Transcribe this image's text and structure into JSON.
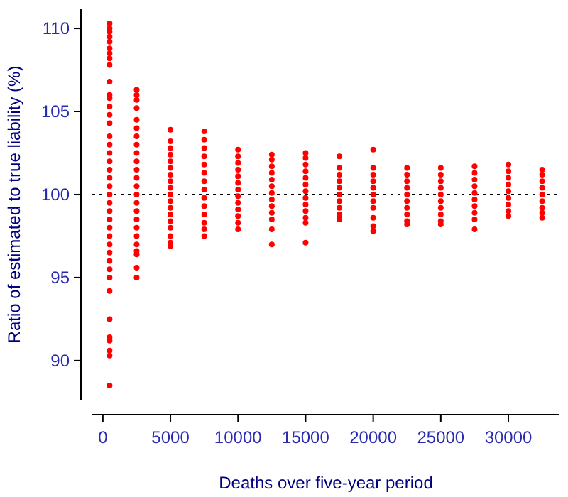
{
  "chart_data": {
    "type": "scatter",
    "xlabel": "Deaths over five-year period",
    "ylabel": "Ratio of estimated to true liability (%)",
    "xlim": [
      -780,
      33780
    ],
    "ylim": [
      87.6,
      111.2
    ],
    "xticks": [
      0,
      5000,
      10000,
      15000,
      20000,
      25000,
      30000
    ],
    "yticks": [
      90,
      95,
      100,
      105,
      110
    ],
    "marker": "circle",
    "grid": false,
    "ref_lines": [
      {
        "axis": "y",
        "value": 100,
        "color": "#000000",
        "line_style": "dotted"
      }
    ],
    "series": [
      {
        "color": "#ff0000",
        "x": [
          500,
          500,
          500,
          500,
          500,
          500,
          500,
          500,
          500,
          500,
          500,
          500,
          500,
          500,
          500,
          500,
          500,
          500,
          500,
          500,
          500,
          500,
          500,
          500,
          500,
          500,
          500,
          500,
          500,
          500,
          500,
          500,
          500,
          500,
          500,
          500,
          500,
          500,
          500,
          500
        ],
        "values": [
          110.3,
          110.0,
          109.8,
          109.5,
          109.2,
          108.8,
          108.5,
          108.2,
          107.8,
          106.8,
          106.0,
          105.8,
          105.3,
          104.8,
          104.3,
          103.5,
          103.0,
          102.5,
          102.0,
          101.5,
          101.0,
          100.5,
          100.0,
          99.5,
          99.0,
          98.5,
          98.0,
          97.5,
          97.0,
          96.5,
          96.0,
          95.5,
          95.0,
          94.2,
          92.5,
          91.4,
          91.2,
          90.6,
          90.3,
          88.5
        ]
      },
      {
        "color": "#ff0000",
        "x": [
          2500,
          2500,
          2500,
          2500,
          2500,
          2500,
          2500,
          2500,
          2500,
          2500,
          2500,
          2500,
          2500,
          2500,
          2500,
          2500,
          2500,
          2500,
          2500,
          2500,
          2500,
          2500,
          2500,
          2500
        ],
        "values": [
          106.3,
          106.0,
          105.7,
          105.2,
          104.5,
          104.0,
          103.5,
          103.0,
          102.5,
          102.0,
          101.5,
          101.0,
          100.5,
          100.0,
          99.5,
          99.0,
          98.5,
          98.0,
          97.5,
          97.0,
          96.6,
          96.4,
          95.6,
          95.0
        ]
      },
      {
        "color": "#ff0000",
        "x": [
          5000,
          5000,
          5000,
          5000,
          5000,
          5000,
          5000,
          5000,
          5000,
          5000,
          5000,
          5000,
          5000,
          5000,
          5000,
          5000,
          5000,
          5000
        ],
        "values": [
          103.9,
          103.2,
          102.8,
          102.4,
          102.0,
          101.6,
          101.2,
          100.8,
          100.4,
          100.0,
          99.6,
          99.2,
          98.8,
          98.4,
          98.0,
          97.5,
          97.1,
          96.9
        ]
      },
      {
        "color": "#ff0000",
        "x": [
          7500,
          7500,
          7500,
          7500,
          7500,
          7500,
          7500,
          7500,
          7500,
          7500,
          7500,
          7500,
          7500,
          7500
        ],
        "values": [
          103.8,
          103.3,
          102.8,
          102.3,
          101.8,
          101.3,
          100.8,
          100.3,
          99.8,
          99.3,
          98.8,
          98.3,
          97.9,
          97.5
        ]
      },
      {
        "color": "#ff0000",
        "x": [
          10000,
          10000,
          10000,
          10000,
          10000,
          10000,
          10000,
          10000,
          10000,
          10000,
          10000,
          10000,
          10000
        ],
        "values": [
          102.7,
          102.3,
          101.9,
          101.5,
          101.1,
          100.7,
          100.3,
          99.9,
          99.5,
          99.1,
          98.7,
          98.3,
          97.9
        ]
      },
      {
        "color": "#ff0000",
        "x": [
          12500,
          12500,
          12500,
          12500,
          12500,
          12500,
          12500,
          12500,
          12500,
          12500,
          12500,
          12500,
          12500
        ],
        "values": [
          102.4,
          102.1,
          101.7,
          101.3,
          100.9,
          100.5,
          100.1,
          99.7,
          99.3,
          98.9,
          98.5,
          97.9,
          97.0
        ]
      },
      {
        "color": "#ff0000",
        "x": [
          15000,
          15000,
          15000,
          15000,
          15000,
          15000,
          15000,
          15000,
          15000,
          15000,
          15000,
          15000,
          15000
        ],
        "values": [
          102.5,
          102.2,
          101.8,
          101.4,
          101.0,
          100.6,
          100.2,
          99.8,
          99.4,
          99.0,
          98.6,
          98.3,
          97.1
        ]
      },
      {
        "color": "#ff0000",
        "x": [
          17500,
          17500,
          17500,
          17500,
          17500,
          17500,
          17500,
          17500,
          17500,
          17500
        ],
        "values": [
          102.3,
          101.6,
          101.2,
          100.8,
          100.4,
          100.0,
          99.6,
          99.2,
          98.8,
          98.5
        ]
      },
      {
        "color": "#ff0000",
        "x": [
          20000,
          20000,
          20000,
          20000,
          20000,
          20000,
          20000,
          20000,
          20000,
          20000,
          20000
        ],
        "values": [
          102.7,
          101.6,
          101.2,
          100.8,
          100.4,
          100.0,
          99.6,
          99.2,
          98.6,
          98.1,
          97.8
        ]
      },
      {
        "color": "#ff0000",
        "x": [
          22500,
          22500,
          22500,
          22500,
          22500,
          22500,
          22500,
          22500,
          22500,
          22500
        ],
        "values": [
          101.6,
          101.2,
          100.8,
          100.4,
          100.0,
          99.6,
          99.2,
          98.8,
          98.4,
          98.2
        ]
      },
      {
        "color": "#ff0000",
        "x": [
          25000,
          25000,
          25000,
          25000,
          25000,
          25000,
          25000,
          25000,
          25000,
          25000
        ],
        "values": [
          101.6,
          101.2,
          100.8,
          100.4,
          100.0,
          99.6,
          99.2,
          98.8,
          98.4,
          98.2
        ]
      },
      {
        "color": "#ff0000",
        "x": [
          27500,
          27500,
          27500,
          27500,
          27500,
          27500,
          27500,
          27500,
          27500,
          27500
        ],
        "values": [
          101.7,
          101.3,
          100.9,
          100.5,
          100.1,
          99.7,
          99.3,
          98.9,
          98.5,
          97.9
        ]
      },
      {
        "color": "#ff0000",
        "x": [
          30000,
          30000,
          30000,
          30000,
          30000,
          30000,
          30000,
          30000,
          30000
        ],
        "values": [
          101.8,
          101.4,
          101.0,
          100.6,
          100.2,
          99.8,
          99.4,
          99.0,
          98.7
        ]
      },
      {
        "color": "#ff0000",
        "x": [
          32500,
          32500,
          32500,
          32500,
          32500,
          32500,
          32500,
          32500,
          32500
        ],
        "values": [
          101.5,
          101.2,
          100.8,
          100.4,
          100.0,
          99.6,
          99.2,
          98.9,
          98.6
        ]
      }
    ]
  }
}
